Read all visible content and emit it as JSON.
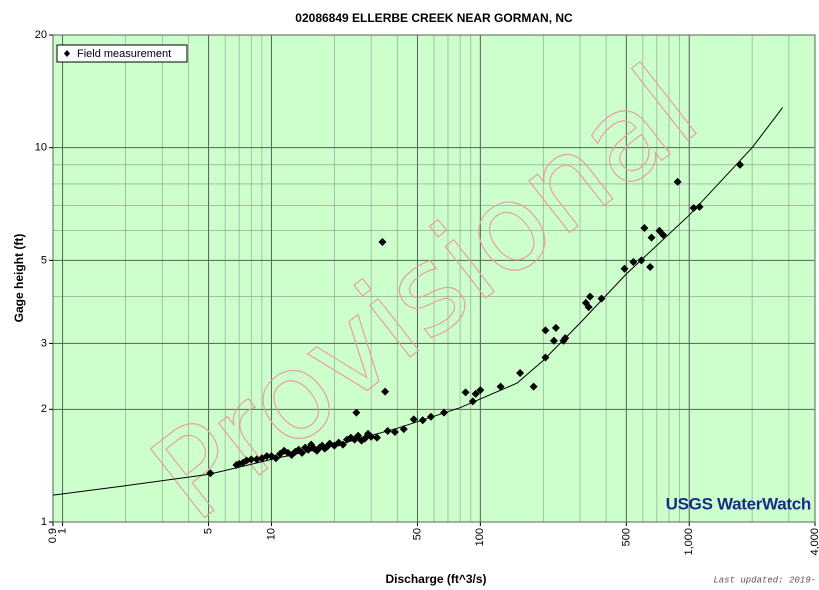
{
  "chart_data": {
    "type": "scatter",
    "title": "02086849 ELLERBE CREEK NEAR GORMAN, NC",
    "x_label": "Discharge (ft^3/s)",
    "y_label": "Gage height (ft)",
    "watermark": "Provisional",
    "logo": "USGS WaterWatch",
    "footer": "Last updated: 2019-",
    "log_x": true,
    "log_y": true,
    "grid": true,
    "legend": "upper left",
    "background": "#ccffcc",
    "xlim": [
      0.9,
      4000
    ],
    "xticks": [
      0.9,
      1,
      5,
      10,
      50,
      100,
      500,
      {
        "value": 1000,
        "label": "1,000"
      },
      {
        "value": 4000,
        "label": "4,000"
      }
    ],
    "ylim": [
      1,
      20
    ],
    "yticks": [
      1,
      2,
      3,
      5,
      10,
      20
    ],
    "series": [
      {
        "name": "Field measurement",
        "type": "scatter",
        "color": "#000000",
        "x": [
          5.1,
          6.8,
          7,
          7.3,
          7.6,
          8,
          8.5,
          9,
          9.5,
          10,
          10.5,
          11,
          11.5,
          12,
          12.5,
          13,
          13.5,
          14,
          14.5,
          15,
          15.5,
          16,
          16.5,
          17,
          17.5,
          18,
          18.5,
          19,
          20,
          21,
          22,
          23,
          24,
          25,
          25.5,
          26,
          27,
          28,
          29,
          30,
          32,
          34,
          35,
          36,
          39,
          43,
          48,
          53,
          58,
          67,
          85,
          92,
          95,
          100,
          125,
          155,
          180,
          205,
          205,
          225,
          230,
          250,
          255,
          320,
          330,
          335,
          380,
          490,
          540,
          590,
          610,
          650,
          660,
          720,
          750,
          880,
          1050,
          1120,
          1750
        ],
        "values": [
          1.35,
          1.42,
          1.43,
          1.44,
          1.46,
          1.47,
          1.47,
          1.48,
          1.5,
          1.5,
          1.48,
          1.52,
          1.55,
          1.53,
          1.51,
          1.54,
          1.56,
          1.53,
          1.58,
          1.56,
          1.61,
          1.57,
          1.55,
          1.58,
          1.6,
          1.57,
          1.59,
          1.62,
          1.6,
          1.63,
          1.61,
          1.66,
          1.68,
          1.66,
          1.96,
          1.7,
          1.65,
          1.67,
          1.72,
          1.69,
          1.68,
          5.6,
          2.23,
          1.75,
          1.74,
          1.77,
          1.88,
          1.87,
          1.91,
          1.96,
          2.22,
          2.1,
          2.2,
          2.25,
          2.3,
          2.5,
          2.3,
          2.75,
          3.25,
          3.05,
          3.3,
          3.05,
          3.1,
          3.85,
          3.75,
          4.0,
          3.95,
          4.75,
          4.95,
          5.0,
          6.1,
          4.8,
          5.75,
          6.0,
          5.85,
          8.1,
          6.9,
          6.95,
          9.0
        ]
      },
      {
        "type": "line",
        "color": "#000000",
        "x": [
          0.9,
          2,
          5,
          10,
          20,
          40,
          80,
          150,
          200,
          300,
          500,
          1000,
          2000,
          2800
        ],
        "values": [
          1.18,
          1.25,
          1.34,
          1.47,
          1.6,
          1.78,
          2.02,
          2.35,
          2.7,
          3.4,
          4.6,
          6.6,
          10.0,
          12.8
        ]
      }
    ]
  }
}
